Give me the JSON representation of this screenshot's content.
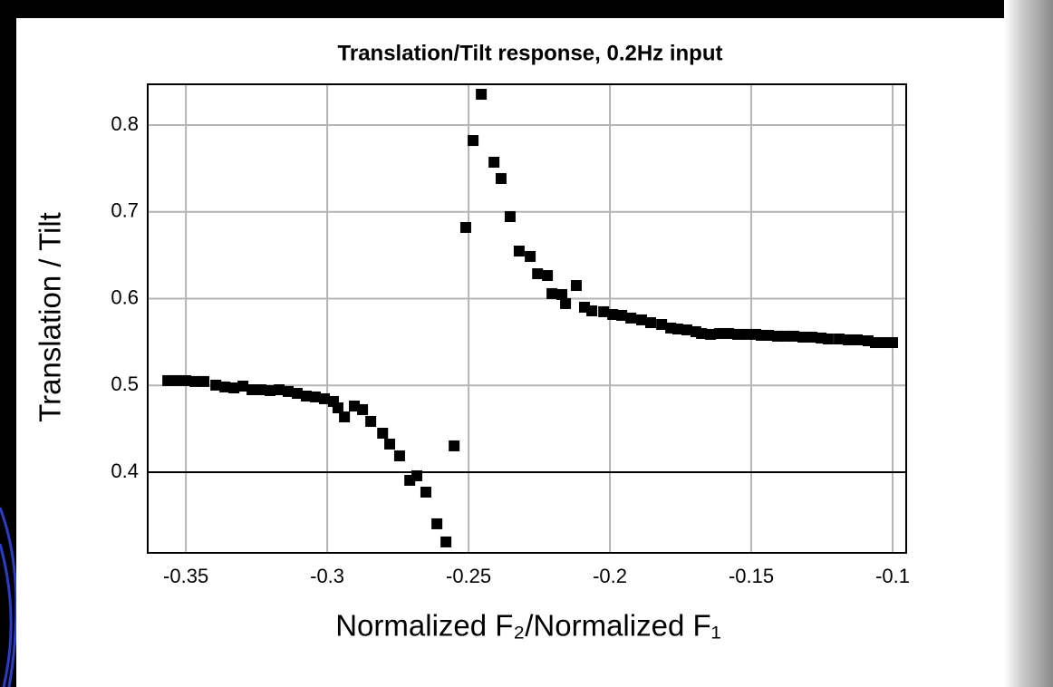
{
  "chart_data": {
    "type": "scatter",
    "title": "Translation/Tilt response, 0.2Hz input",
    "x_label": "Normalized F₂/Normalized F₁",
    "y_label": "Translation / Tilt",
    "color": "#000000",
    "grid": true,
    "reference_line": 0.4,
    "xlim": [
      -0.3635,
      -0.0952
    ],
    "ylim": [
      0.307,
      0.847
    ],
    "xticks": [
      -0.35,
      -0.3,
      -0.25,
      -0.2,
      -0.15,
      -0.1
    ],
    "yticks": [
      0.4,
      0.5,
      0.6,
      0.7,
      0.8
    ],
    "x": [
      -0.3564,
      -0.3532,
      -0.35,
      -0.3468,
      -0.3436,
      -0.3394,
      -0.3362,
      -0.333,
      -0.3298,
      -0.3266,
      -0.3234,
      -0.3202,
      -0.317,
      -0.3138,
      -0.3106,
      -0.3074,
      -0.3042,
      -0.301,
      -0.2978,
      -0.2962,
      -0.2939,
      -0.2904,
      -0.2875,
      -0.2846,
      -0.2804,
      -0.2779,
      -0.2744,
      -0.2708,
      -0.2683,
      -0.2651,
      -0.2612,
      -0.258,
      -0.2551,
      -0.251,
      -0.2484,
      -0.2455,
      -0.241,
      -0.2385,
      -0.2353,
      -0.2321,
      -0.2282,
      -0.2256,
      -0.2221,
      -0.2205,
      -0.217,
      -0.2157,
      -0.2119,
      -0.209,
      -0.2064,
      -0.2022,
      -0.199,
      -0.1958,
      -0.1926,
      -0.1888,
      -0.1856,
      -0.1817,
      -0.1785,
      -0.176,
      -0.1728,
      -0.1696,
      -0.1676,
      -0.1644,
      -0.1612,
      -0.158,
      -0.1548,
      -0.1516,
      -0.1484,
      -0.1465,
      -0.1439,
      -0.1407,
      -0.1381,
      -0.1349,
      -0.1317,
      -0.1285,
      -0.1253,
      -0.1228,
      -0.1189,
      -0.1157,
      -0.1125,
      -0.1087,
      -0.1061,
      -0.1029,
      -0.1
    ],
    "values": [
      0.5055,
      0.5055,
      0.5055,
      0.5045,
      0.5045,
      0.5003,
      0.4982,
      0.4971,
      0.4992,
      0.495,
      0.495,
      0.494,
      0.495,
      0.493,
      0.4908,
      0.4877,
      0.4867,
      0.4846,
      0.4815,
      0.4741,
      0.4637,
      0.4762,
      0.4721,
      0.4585,
      0.4449,
      0.4324,
      0.4188,
      0.3906,
      0.3958,
      0.377,
      0.3405,
      0.3196,
      0.4303,
      0.682,
      0.7822,
      0.8355,
      0.7572,
      0.7384,
      0.6945,
      0.6548,
      0.6486,
      0.6287,
      0.6266,
      0.6058,
      0.6047,
      0.5943,
      0.6151,
      0.5901,
      0.5859,
      0.5849,
      0.5817,
      0.5807,
      0.5776,
      0.5755,
      0.5723,
      0.5702,
      0.5661,
      0.565,
      0.564,
      0.5619,
      0.5598,
      0.5588,
      0.5598,
      0.5598,
      0.5588,
      0.5588,
      0.5588,
      0.5577,
      0.5577,
      0.5567,
      0.5567,
      0.5567,
      0.5556,
      0.5556,
      0.5546,
      0.5535,
      0.5535,
      0.5525,
      0.5525,
      0.5514,
      0.5493,
      0.5493,
      0.5493
    ]
  }
}
